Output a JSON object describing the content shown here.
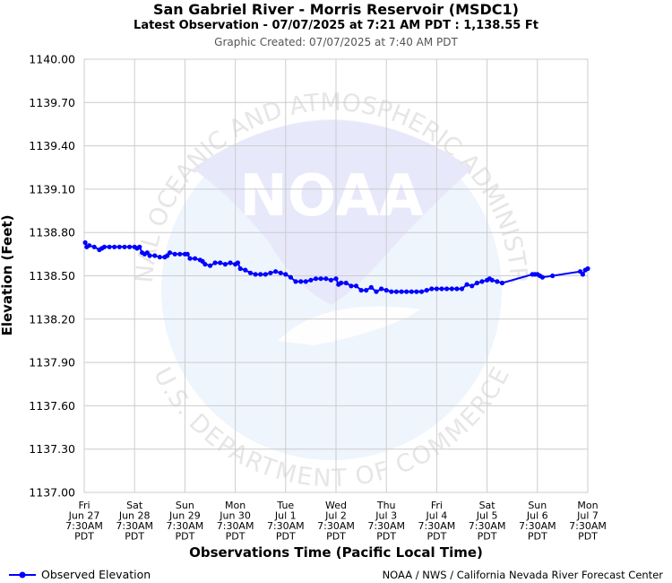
{
  "header": {
    "title": "San Gabriel River - Morris Reservoir (MSDC1)",
    "subtitle": "Latest Observation - 07/07/2025 at 7:21 AM PDT : 1,138.55 Ft",
    "created": "Graphic Created: 07/07/2025 at 7:40 AM PDT"
  },
  "watermark": {
    "logo_text": "NOAA",
    "ring_top": "NATIONAL OCEANIC AND ATMOSPHERIC ADMINISTRATION",
    "ring_bottom": "U.S. DEPARTMENT OF COMMERCE"
  },
  "chart_data": {
    "type": "line",
    "ylabel": "Elevation (Feet)",
    "xlabel": "Observations Time (Pacific Local Time)",
    "ylim": [
      1137.0,
      1140.0
    ],
    "yticks": [
      "1140.00",
      "1139.70",
      "1139.40",
      "1139.10",
      "1138.80",
      "1138.50",
      "1138.20",
      "1137.90",
      "1137.60",
      "1137.30",
      "1137.00"
    ],
    "xlim": [
      0,
      10
    ],
    "xticks": [
      {
        "day": "Fri",
        "date": "Jun 27",
        "time": "7:30AM",
        "tz": "PDT"
      },
      {
        "day": "Sat",
        "date": "Jun 28",
        "time": "7:30AM",
        "tz": "PDT"
      },
      {
        "day": "Sun",
        "date": "Jun 29",
        "time": "7:30AM",
        "tz": "PDT"
      },
      {
        "day": "Mon",
        "date": "Jun 30",
        "time": "7:30AM",
        "tz": "PDT"
      },
      {
        "day": "Tue",
        "date": "Jul 1",
        "time": "7:30AM",
        "tz": "PDT"
      },
      {
        "day": "Wed",
        "date": "Jul 2",
        "time": "7:30AM",
        "tz": "PDT"
      },
      {
        "day": "Thu",
        "date": "Jul 3",
        "time": "7:30AM",
        "tz": "PDT"
      },
      {
        "day": "Fri",
        "date": "Jul 4",
        "time": "7:30AM",
        "tz": "PDT"
      },
      {
        "day": "Sat",
        "date": "Jul 5",
        "time": "7:30AM",
        "tz": "PDT"
      },
      {
        "day": "Sun",
        "date": "Jul 6",
        "time": "7:30AM",
        "tz": "PDT"
      },
      {
        "day": "Mon",
        "date": "Jul 7",
        "time": "7:30AM",
        "tz": "PDT"
      }
    ],
    "grid": true,
    "legend_position": "bottom-left",
    "series": [
      {
        "name": "Observed Elevation",
        "color": "#0000ff",
        "x": [
          0.02,
          0.05,
          0.1,
          0.2,
          0.3,
          0.35,
          0.4,
          0.5,
          0.6,
          0.7,
          0.8,
          0.9,
          1.0,
          1.05,
          1.1,
          1.15,
          1.2,
          1.25,
          1.3,
          1.4,
          1.5,
          1.6,
          1.65,
          1.7,
          1.8,
          1.9,
          2.0,
          2.05,
          2.1,
          2.2,
          2.3,
          2.35,
          2.4,
          2.5,
          2.6,
          2.7,
          2.8,
          2.9,
          3.0,
          3.05,
          3.1,
          3.2,
          3.3,
          3.4,
          3.5,
          3.6,
          3.7,
          3.8,
          3.9,
          4.0,
          4.1,
          4.2,
          4.3,
          4.4,
          4.5,
          4.6,
          4.7,
          4.8,
          4.9,
          5.0,
          5.05,
          5.1,
          5.2,
          5.3,
          5.4,
          5.5,
          5.6,
          5.7,
          5.8,
          5.9,
          6.0,
          6.1,
          6.2,
          6.3,
          6.4,
          6.5,
          6.6,
          6.7,
          6.8,
          6.9,
          7.0,
          7.1,
          7.2,
          7.3,
          7.4,
          7.5,
          7.6,
          7.7,
          7.8,
          7.9,
          8.0,
          8.05,
          8.1,
          8.2,
          8.3,
          8.9,
          8.95,
          9.0,
          9.05,
          9.1,
          9.3,
          9.85,
          9.9,
          9.95,
          10.0
        ],
        "y": [
          1138.73,
          1138.7,
          1138.71,
          1138.7,
          1138.68,
          1138.69,
          1138.7,
          1138.7,
          1138.7,
          1138.7,
          1138.7,
          1138.7,
          1138.7,
          1138.69,
          1138.7,
          1138.66,
          1138.65,
          1138.66,
          1138.64,
          1138.64,
          1138.63,
          1138.63,
          1138.64,
          1138.66,
          1138.65,
          1138.65,
          1138.65,
          1138.65,
          1138.62,
          1138.62,
          1138.61,
          1138.6,
          1138.58,
          1138.57,
          1138.59,
          1138.59,
          1138.58,
          1138.59,
          1138.58,
          1138.59,
          1138.55,
          1138.54,
          1138.52,
          1138.51,
          1138.51,
          1138.51,
          1138.52,
          1138.53,
          1138.52,
          1138.51,
          1138.49,
          1138.46,
          1138.46,
          1138.46,
          1138.47,
          1138.48,
          1138.48,
          1138.48,
          1138.47,
          1138.48,
          1138.44,
          1138.45,
          1138.45,
          1138.43,
          1138.43,
          1138.4,
          1138.4,
          1138.42,
          1138.39,
          1138.41,
          1138.4,
          1138.39,
          1138.39,
          1138.39,
          1138.39,
          1138.39,
          1138.39,
          1138.39,
          1138.4,
          1138.41,
          1138.41,
          1138.41,
          1138.41,
          1138.41,
          1138.41,
          1138.41,
          1138.44,
          1138.43,
          1138.45,
          1138.46,
          1138.47,
          1138.48,
          1138.47,
          1138.46,
          1138.45,
          1138.51,
          1138.51,
          1138.51,
          1138.5,
          1138.49,
          1138.5,
          1138.53,
          1138.51,
          1138.54,
          1138.55
        ]
      }
    ]
  },
  "legend": {
    "label": "Observed Elevation"
  },
  "footer": {
    "credit": "NOAA / NWS / California Nevada River Forecast Center"
  }
}
